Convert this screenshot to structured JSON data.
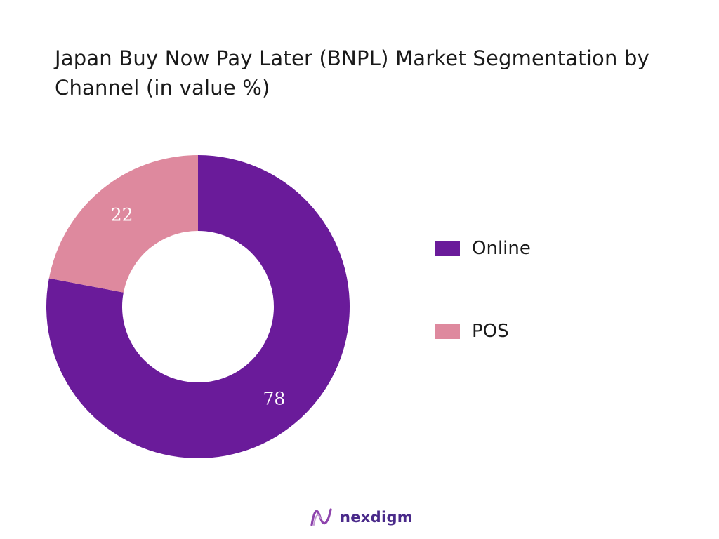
{
  "title": "Japan Buy Now Pay Later (BNPL) Market Segmentation by Channel (in value %)",
  "chart_data": {
    "type": "pie",
    "variant": "donut",
    "title": "Japan Buy Now Pay Later (BNPL) Market Segmentation by Channel (in value %)",
    "categories": [
      "Online",
      "POS"
    ],
    "values": [
      78,
      22
    ],
    "colors": [
      "#6a1b9a",
      "#de899e"
    ],
    "data_labels": [
      "78",
      "22"
    ],
    "legend_position": "right",
    "start_angle": "12 o'clock, clockwise"
  },
  "legend": {
    "items": [
      {
        "label": "Online",
        "color": "#6a1b9a"
      },
      {
        "label": "POS",
        "color": "#de899e"
      }
    ]
  },
  "brand": {
    "name": "nexdigm",
    "logo_icon": "nexdigm-wave-icon",
    "color": "#4a2a8a"
  }
}
